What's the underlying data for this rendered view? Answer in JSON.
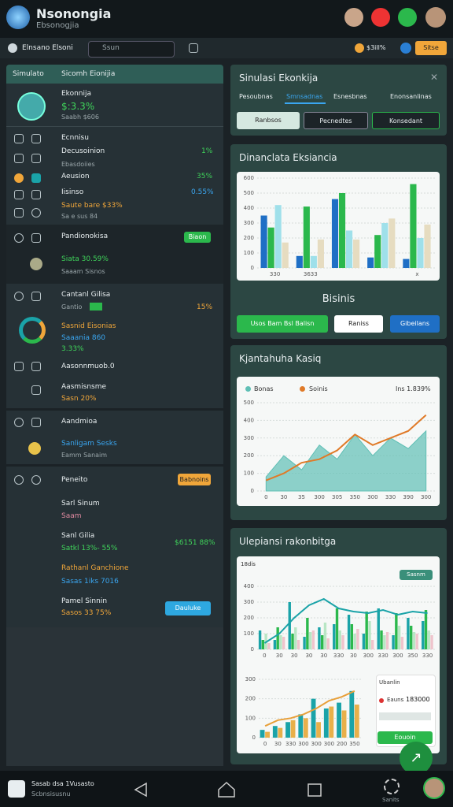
{
  "header": {
    "title": "Nsonongia",
    "subtitle": "Ebsonogjia"
  },
  "toolbar": {
    "workspace": "Elnsano Elsoni",
    "search": "Ssun",
    "balance": "$3ill%",
    "button": "Sitse"
  },
  "sidebar": {
    "tab": "Simulato",
    "heading": "Sicomh Eionijia",
    "profile": {
      "title": "Ekonnija",
      "value": "$:3.3%",
      "note": "Saabh $606"
    },
    "list": {
      "r0": "Ecnnisu",
      "r1": "Decusoinion",
      "r1v": "1%",
      "r2": "Ebasdoiies",
      "r3": "Aeusion",
      "r3v": "35%",
      "r4": "Iisinso",
      "r4v": "0.55%",
      "r5": "Saute bare $33%",
      "r6": "Sa e sus 84"
    },
    "promo": {
      "title": "Pandionokisa",
      "button": "Biaon",
      "value": "Siata 30.59%",
      "note": "Saaam Sisnos"
    },
    "control": {
      "title": "Cantanl Gilisa",
      "badge": "Gantio",
      "badge_value": "15%",
      "l1": "Sasnid Eisonias",
      "l2": "Saaania 860",
      "l3": "3.33%",
      "l4": "Aasonnmuob.0",
      "l5": "Aasmisnsme",
      "l6": "Sasn 20%"
    },
    "admin": {
      "title": "Aandmioa",
      "l1": "Sanligam Sesks",
      "l2": "Eamm Sanaim"
    },
    "results": {
      "title": "Peneito",
      "button": "Babnoins",
      "a": "Sarl Sinum",
      "a2": "Saam",
      "b": "Sanl Gilia",
      "b2": "Satkl 13%- 55%",
      "b3": "$6151 88%",
      "c": "Rathanl Ganchione",
      "c2": "Sasas 1iks 7016",
      "d": "Pamel Sinnin",
      "d2": "Sasos 33 75%",
      "d_button": "Dauluke"
    }
  },
  "sim_panel": {
    "title": "Sinulasi Ekonkija",
    "tabs": [
      "Pesoubnas",
      "Smnsadnas",
      "Esnesbnas",
      "Enonsanlinas"
    ],
    "buttons": [
      "Ranbsos",
      "Pecnedtes",
      "Konsedant"
    ]
  },
  "finance_panel": {
    "title": "Dinanclata Eksiancia",
    "caption": "Bisinis",
    "buttons": [
      "Usos Bam Bsl Balisn",
      "Raniss",
      "Gibeilans"
    ],
    "chart": {
      "categories": [
        "330",
        "3633",
        null,
        null,
        "x"
      ],
      "ylim": [
        0,
        600
      ],
      "yticks": [
        0,
        100,
        200,
        300,
        400,
        500,
        600
      ],
      "series": [
        {
          "color": "#1f6fc5",
          "values": [
            350,
            80,
            460,
            70,
            60
          ]
        },
        {
          "color": "#2bb84c",
          "values": [
            270,
            410,
            500,
            220,
            560
          ]
        },
        {
          "color": "#9fe0ea",
          "values": [
            420,
            80,
            250,
            300,
            200
          ]
        },
        {
          "color": "#e6dcc0",
          "values": [
            170,
            190,
            190,
            330,
            290
          ]
        }
      ]
    }
  },
  "growth_panel": {
    "title": "Kjantahuha Kasiq",
    "stat": "Ins 1.839%",
    "chart": {
      "categories": [
        "0",
        "30",
        "35",
        "300",
        "305",
        "350",
        "300",
        "330",
        "390",
        "300"
      ],
      "ylim": [
        0,
        500
      ],
      "yticks": [
        0,
        100,
        200,
        300,
        400,
        500
      ],
      "series": [
        {
          "name": "Bonas",
          "kind": "area",
          "color": "#5fbfb5",
          "values": [
            80,
            200,
            120,
            260,
            180,
            320,
            200,
            300,
            240,
            340
          ]
        },
        {
          "name": "Soinis",
          "kind": "line",
          "color": "#e07a28",
          "values": [
            60,
            100,
            160,
            180,
            230,
            320,
            260,
            300,
            340,
            430
          ]
        }
      ]
    }
  },
  "plan_panel": {
    "title": "Ulepiansi rakonbitga",
    "axis_title": "18dis",
    "badge": "Sasnm",
    "chart": {
      "categories": [
        "0",
        "30",
        "30",
        "30",
        "30",
        "330",
        "30",
        "300",
        "330",
        "300",
        "350",
        "330"
      ],
      "ylim": [
        0,
        400
      ],
      "yticks": [
        0,
        100,
        200,
        300,
        400
      ],
      "series": [
        {
          "color": "#1aa3a8",
          "values": [
            120,
            60,
            300,
            80,
            140,
            160,
            220,
            100,
            260,
            90,
            200,
            180
          ]
        },
        {
          "color": "#2bb84c",
          "values": [
            60,
            140,
            100,
            200,
            90,
            260,
            160,
            240,
            120,
            230,
            150,
            250
          ]
        },
        {
          "color": "#b8e6c4",
          "values": [
            100,
            90,
            140,
            110,
            170,
            120,
            100,
            180,
            90,
            150,
            110,
            120
          ]
        },
        {
          "color": "#efc4cc",
          "values": [
            40,
            80,
            60,
            120,
            70,
            90,
            130,
            60,
            110,
            80,
            100,
            90
          ]
        },
        {
          "kind": "line",
          "color": "#1aa3a8",
          "values": [
            40,
            100,
            200,
            280,
            320,
            260,
            240,
            230,
            250,
            220,
            240,
            230
          ]
        }
      ]
    },
    "mini_chart": {
      "categories": [
        "0",
        "30",
        "330",
        "300",
        "300",
        "300",
        "200",
        "350"
      ],
      "ylim": [
        0,
        300
      ],
      "yticks": [
        0,
        100,
        200,
        300
      ],
      "series": [
        {
          "color": "#1aa3a8",
          "values": [
            40,
            60,
            80,
            120,
            200,
            150,
            180,
            240
          ]
        },
        {
          "color": "#e8b04a",
          "values": [
            30,
            50,
            90,
            100,
            80,
            160,
            140,
            170
          ]
        },
        {
          "kind": "line",
          "color": "#e8a03a",
          "values": [
            60,
            90,
            100,
            120,
            150,
            190,
            210,
            240
          ]
        }
      ]
    },
    "side": {
      "title": "Ubanlin",
      "row": "Eauns",
      "value": "183000",
      "button": "Eouoin"
    }
  },
  "footer": {
    "app": "Sasab dsa 1Vusasto",
    "app_sub": "Scbnsisusnu",
    "settings": "Sanits"
  }
}
